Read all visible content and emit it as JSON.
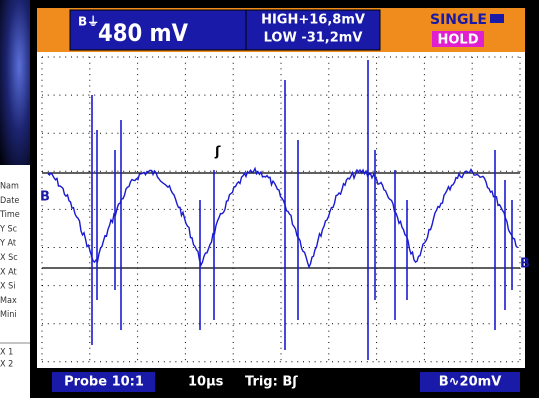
{
  "sidebar": {
    "labels": [
      "Nam",
      "Date",
      "Time",
      "Y Sc",
      "Y At",
      "X Sc",
      "X At",
      "X Si",
      "Max",
      "Mini",
      "X 1",
      "X 2"
    ]
  },
  "header": {
    "channel": "B⏚",
    "voltage": "480 mV",
    "high": "HIGH+16,8mV",
    "low": "LOW -31,2mV",
    "mode": "SINGLE",
    "hold": "HOLD"
  },
  "footer": {
    "probe": "Probe 10:1",
    "timebase": "10µs",
    "trigger": "Trig: Bʃ",
    "scale": "B∿20mV"
  },
  "markers": {
    "left": "B",
    "right": "B",
    "trigger": "ʃ"
  }
}
